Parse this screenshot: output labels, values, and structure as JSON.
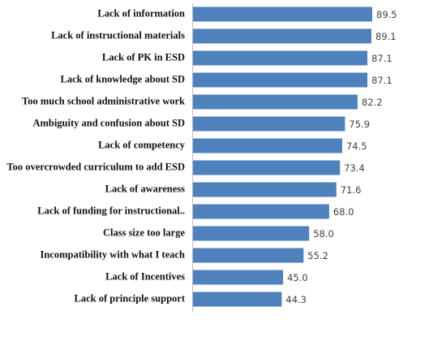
{
  "chart_data": {
    "type": "bar",
    "orientation": "horizontal",
    "categories": [
      "Lack of information",
      "Lack of instructional materials",
      "Lack of PK in ESD",
      "Lack of knowledge about SD",
      "Too much school administrative work",
      "Ambiguity and confusion about SD",
      "Lack of competency",
      "Too overcrowded curriculum to add ESD",
      "Lack of awareness",
      "Lack of funding for instructional..",
      "Class size too large",
      "Incompatibility with what I teach",
      "Lack of Incentives",
      "Lack of principle support"
    ],
    "values": [
      89.5,
      89.1,
      87.1,
      87.1,
      82.2,
      75.9,
      74.5,
      73.4,
      71.6,
      68.0,
      58.0,
      55.2,
      45.0,
      44.3
    ],
    "value_labels": [
      "89.5",
      "89.1",
      "87.1",
      "87.1",
      "82.2",
      "75.9",
      "74.5",
      "73.4",
      "71.6",
      "68.0",
      "58.0",
      "55.2",
      "45.0",
      "44.3"
    ],
    "color": "#4f81bd"
  }
}
